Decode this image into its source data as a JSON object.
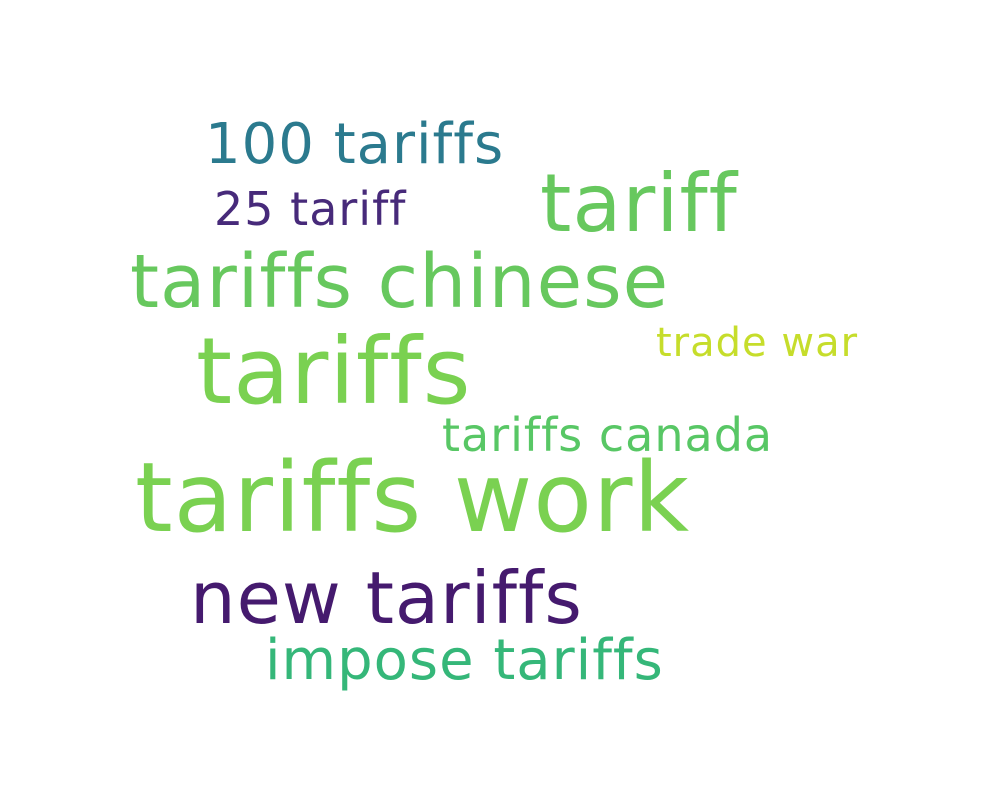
{
  "word_cloud": {
    "words": [
      {
        "text": "100 tariffs",
        "color": "#2b7a8e"
      },
      {
        "text": "tariff",
        "color": "#67c85e"
      },
      {
        "text": "25 tariff",
        "color": "#472a7a"
      },
      {
        "text": "tariffs chinese",
        "color": "#67c85e"
      },
      {
        "text": "tariffs",
        "color": "#7ad151"
      },
      {
        "text": "trade war",
        "color": "#c6dd2b"
      },
      {
        "text": "tariffs canada",
        "color": "#58c765"
      },
      {
        "text": "tariffs work",
        "color": "#7ad151"
      },
      {
        "text": "new tariffs",
        "color": "#451a6e"
      },
      {
        "text": "impose tariffs",
        "color": "#35b779"
      }
    ]
  }
}
